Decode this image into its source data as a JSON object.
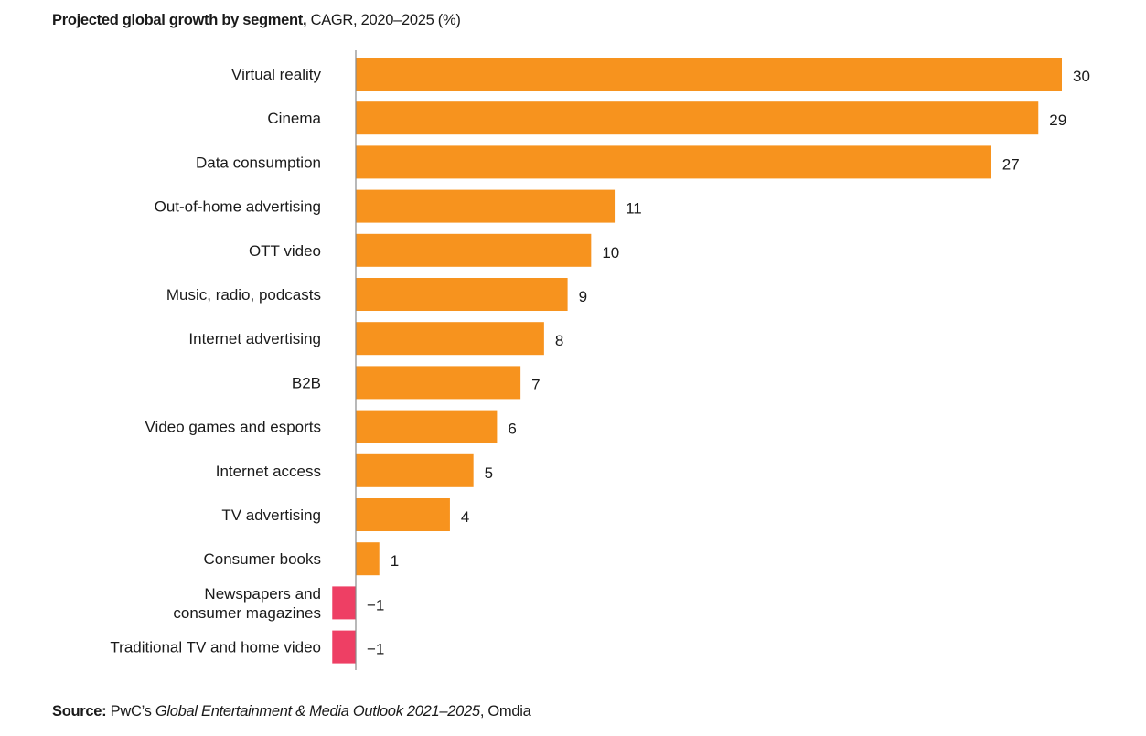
{
  "title": {
    "bold": "Projected global growth by segment,",
    "regular": " CAGR, 2020–2025 (%)"
  },
  "source": {
    "bold": "Source:",
    "pre": " PwC’s ",
    "italic": "Global Entertainment & Media Outlook 2021–2025",
    "post": ", Omdia"
  },
  "colors": {
    "positive": "#F7931E",
    "negative": "#EE3F64",
    "axis": "#8a8a8a"
  },
  "chart_data": {
    "type": "bar",
    "orientation": "horizontal",
    "title": "Projected global growth by segment, CAGR, 2020–2025 (%)",
    "xlabel": "",
    "ylabel": "",
    "xlim": [
      -1,
      30
    ],
    "grid": false,
    "legend": "none",
    "categories": [
      [
        "Virtual reality"
      ],
      [
        "Cinema"
      ],
      [
        "Data consumption"
      ],
      [
        "Out-of-home advertising"
      ],
      [
        "OTT video"
      ],
      [
        "Music, radio, podcasts"
      ],
      [
        "Internet advertising"
      ],
      [
        "B2B"
      ],
      [
        "Video games and esports"
      ],
      [
        "Internet access"
      ],
      [
        "TV advertising"
      ],
      [
        "Consumer books"
      ],
      [
        "Newspapers and",
        "consumer magazines"
      ],
      [
        "Traditional TV and home video"
      ]
    ],
    "values": [
      30,
      29,
      27,
      11,
      10,
      9,
      8,
      7,
      6,
      5,
      4,
      1,
      -1,
      -1
    ],
    "value_labels": [
      "30",
      "29",
      "27",
      "11",
      "10",
      "9",
      "8",
      "7",
      "6",
      "5",
      "4",
      "1",
      "−1",
      "−1"
    ]
  }
}
